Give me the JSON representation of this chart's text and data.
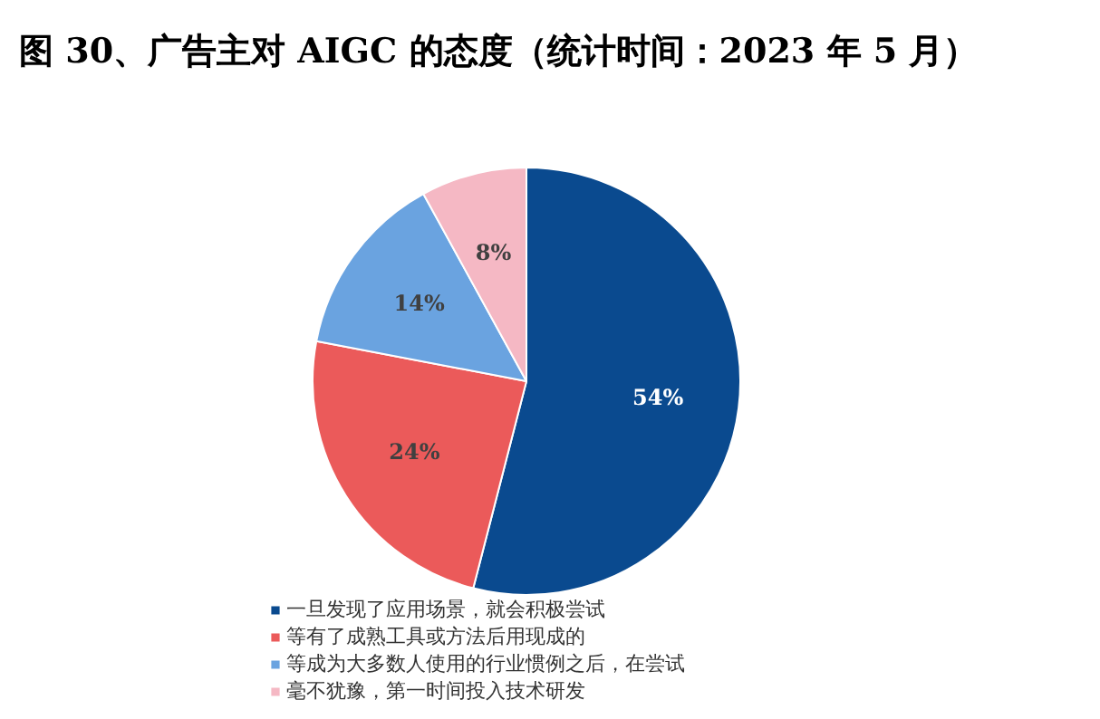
{
  "chart_data": {
    "type": "pie",
    "title": "图 30、广告主对 AIGC 的态度（统计时间：2023 年 5 月）",
    "categories": [
      "一旦发现了应用场景，就会积极尝试",
      "等有了成熟工具或方法后用现成的",
      "等成为大多数人使用的行业惯例之后，在尝试",
      "毫不犹豫，第一时间投入技术研发"
    ],
    "values": [
      54,
      24,
      14,
      8
    ],
    "colors": [
      "#0a4a8f",
      "#eb5a5a",
      "#6aa3e0",
      "#f5b8c4"
    ],
    "value_labels": [
      "54%",
      "24%",
      "14%",
      "8%"
    ],
    "legend": "bottom"
  }
}
